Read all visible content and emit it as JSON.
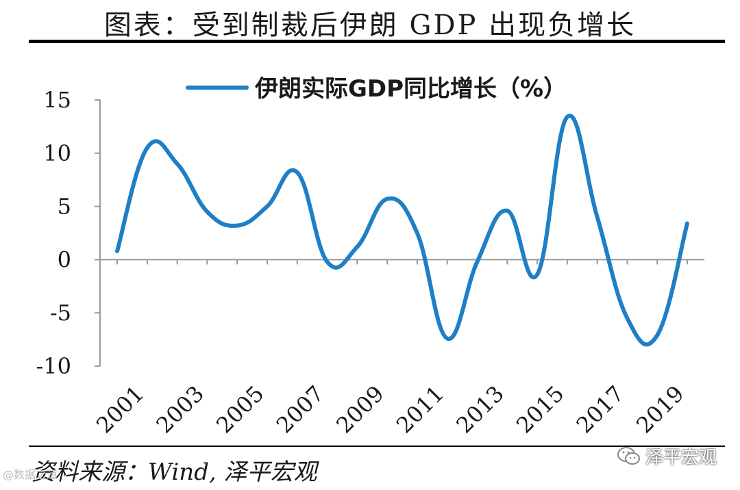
{
  "title": "图表：受到制裁后伊朗 GDP 出现负增长",
  "source": "资料来源：Wind, 泽平宏观",
  "watermark": "泽平宏观",
  "corner_mark": "@数据之道",
  "colors": {
    "series": "#1f7fc6",
    "axis": "#999999",
    "text": "#1a1a1a"
  },
  "chart_data": {
    "type": "line",
    "title": "",
    "xlabel": "",
    "ylabel": "",
    "x": [
      2001,
      2002,
      2003,
      2004,
      2005,
      2006,
      2007,
      2008,
      2009,
      2010,
      2011,
      2012,
      2013,
      2014,
      2015,
      2016,
      2017,
      2018,
      2019,
      2020
    ],
    "x_tick_labels": [
      "2001",
      "2003",
      "2005",
      "2007",
      "2009",
      "2011",
      "2013",
      "2015",
      "2017",
      "2019"
    ],
    "y_ticks": [
      15,
      10,
      5,
      0,
      -5,
      -10
    ],
    "ylim": [
      -10,
      15
    ],
    "grid": false,
    "legend_position": "top",
    "series": [
      {
        "name": "伊朗实际GDP同比增长（%）",
        "values": [
          0.8,
          10.5,
          9.0,
          4.5,
          3.2,
          5.0,
          8.2,
          -0.2,
          1.2,
          5.7,
          2.5,
          -7.4,
          -0.2,
          4.6,
          -1.4,
          13.4,
          4.0,
          -5.5,
          -7.1,
          3.4
        ]
      }
    ]
  }
}
